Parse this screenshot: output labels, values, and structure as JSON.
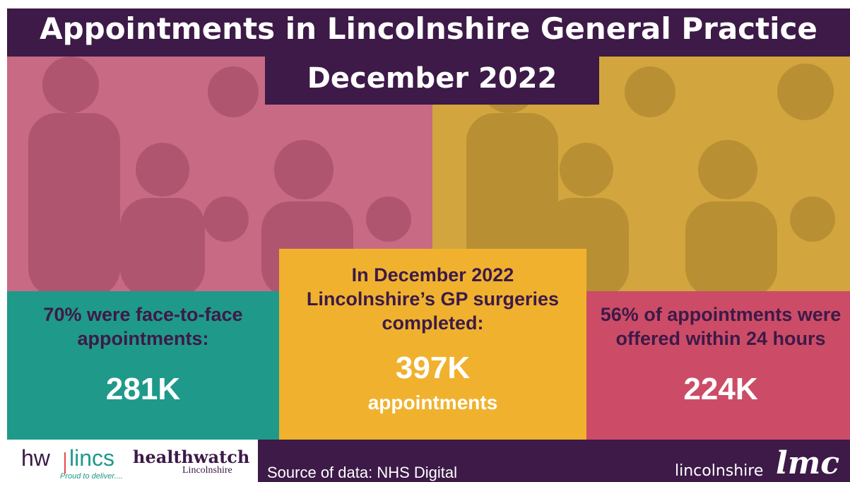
{
  "header": {
    "title": "Appointments in Lincolnshire General Practice",
    "subtitle": "December 2022"
  },
  "panels": [
    {
      "lines": [
        "70% were face-to-face",
        "appointments:"
      ],
      "figure": "281K"
    },
    {
      "lines": [
        "In December 2022",
        "Lincolnshire’s GP surgeries",
        "completed:"
      ],
      "figure": "397K",
      "unit": "appointments"
    },
    {
      "lines": [
        "56% of appointments were",
        "offered within 24 hours"
      ],
      "figure": "224K"
    }
  ],
  "footer": {
    "logo_hw": "hw",
    "logo_lincs": "lincs",
    "tagline": "Proud to deliver....",
    "healthwatch": "healthwatch",
    "healthwatch_sub": "Lincolnshire",
    "source": "Source of data: NHS Digital",
    "lmc_text": "lincolnshire",
    "lmc_mark": "lmc"
  }
}
